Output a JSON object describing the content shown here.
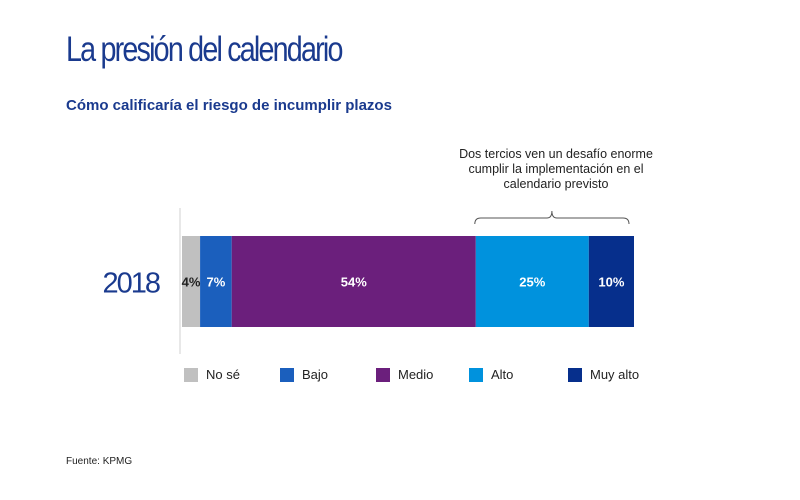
{
  "title": "La presión del calendario",
  "subtitle": "Cómo calificaría el riesgo de incumplir plazos",
  "annotation": "Dos tercios ven un desafío enorme cumplir la implementación en el calendario previsto",
  "source": "Fuente: KPMG",
  "chart_data": {
    "type": "bar",
    "orientation": "horizontal-stacked",
    "categories": [
      "2018"
    ],
    "series": [
      {
        "name": "No sé",
        "values": [
          4
        ],
        "label": "4%",
        "color": "#c0c0c0"
      },
      {
        "name": "Bajo",
        "values": [
          7
        ],
        "label": "7%",
        "color": "#1b5fbd"
      },
      {
        "name": "Medio",
        "values": [
          54
        ],
        "label": "54%",
        "color": "#6b1f7c"
      },
      {
        "name": "Alto",
        "values": [
          25
        ],
        "label": "25%",
        "color": "#0092dd"
      },
      {
        "name": "Muy alto",
        "values": [
          10
        ],
        "label": "10%",
        "color": "#062f8c"
      }
    ],
    "xlim": [
      0,
      100
    ],
    "grid": false,
    "legend_position": "bottom"
  }
}
